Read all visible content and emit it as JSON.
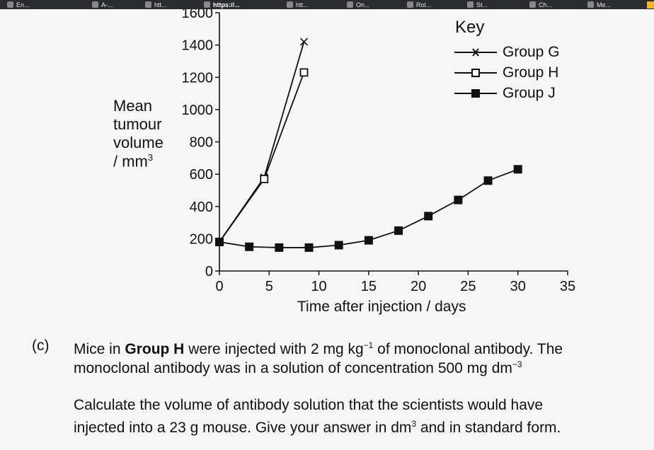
{
  "browser": {
    "tabs": [
      {
        "label": "En...",
        "icon": "tab-favicon"
      },
      {
        "label": "A-...",
        "icon": "tab-favicon"
      },
      {
        "label": "htt...",
        "icon": "tab-favicon"
      },
      {
        "label": "https://...",
        "icon": "tab-favicon",
        "active": true
      },
      {
        "label": "htt...",
        "icon": "tab-favicon"
      },
      {
        "label": "On...",
        "icon": "tab-favicon"
      },
      {
        "label": "Rol...",
        "icon": "tab-favicon"
      },
      {
        "label": "St...",
        "icon": "tab-favicon"
      },
      {
        "label": "Ch...",
        "icon": "tab-favicon"
      },
      {
        "label": "Me...",
        "icon": "tab-favicon"
      }
    ]
  },
  "chart_data": {
    "type": "line",
    "title": "",
    "xlabel": "Time after injection / days",
    "ylabel_lines": [
      "Mean",
      "tumour",
      "volume",
      "/ mm",
      "3"
    ],
    "xlim": [
      0,
      35
    ],
    "ylim": [
      0,
      1600
    ],
    "x_ticks": [
      "0",
      "5",
      "10",
      "15",
      "20",
      "25",
      "30",
      "35"
    ],
    "y_ticks": [
      "0",
      "200",
      "400",
      "600",
      "800",
      "1000",
      "1200",
      "1400",
      "1600"
    ],
    "grid": false,
    "legend": {
      "title": "Key",
      "position": "top-right"
    },
    "series": [
      {
        "name": "Group G",
        "marker": "cross",
        "x": [
          0,
          4.5,
          8.5
        ],
        "y": [
          180,
          580,
          1420
        ]
      },
      {
        "name": "Group H",
        "marker": "open-square",
        "x": [
          0,
          4.5,
          8.5
        ],
        "y": [
          180,
          570,
          1230
        ]
      },
      {
        "name": "Group J",
        "marker": "filled-square",
        "x": [
          0,
          3,
          6,
          9,
          12,
          15,
          18,
          21,
          24,
          27,
          30
        ],
        "y": [
          180,
          150,
          145,
          145,
          160,
          190,
          250,
          340,
          440,
          560,
          630
        ]
      }
    ]
  },
  "question": {
    "label": "(c)",
    "line1_a": "Mice in ",
    "line1_bold": "Group H",
    "line1_b": " were injected with 2 mg kg",
    "line1_sup": "−1",
    "line1_c": " of monoclonal antibody. The",
    "line2_a": "monoclonal antibody was in a solution of concentration 500 mg dm",
    "line2_sup": "−3",
    "line3": "Calculate the volume of antibody solution that the scientists would have",
    "line4_a": "injected into a 23 g mouse. Give your answer in dm",
    "line4_sup": "3",
    "line4_b": " and in standard form."
  },
  "colors": {
    "ink": "#111111",
    "background": "#f6f6f6",
    "tabbar": "#2a2b2e"
  }
}
